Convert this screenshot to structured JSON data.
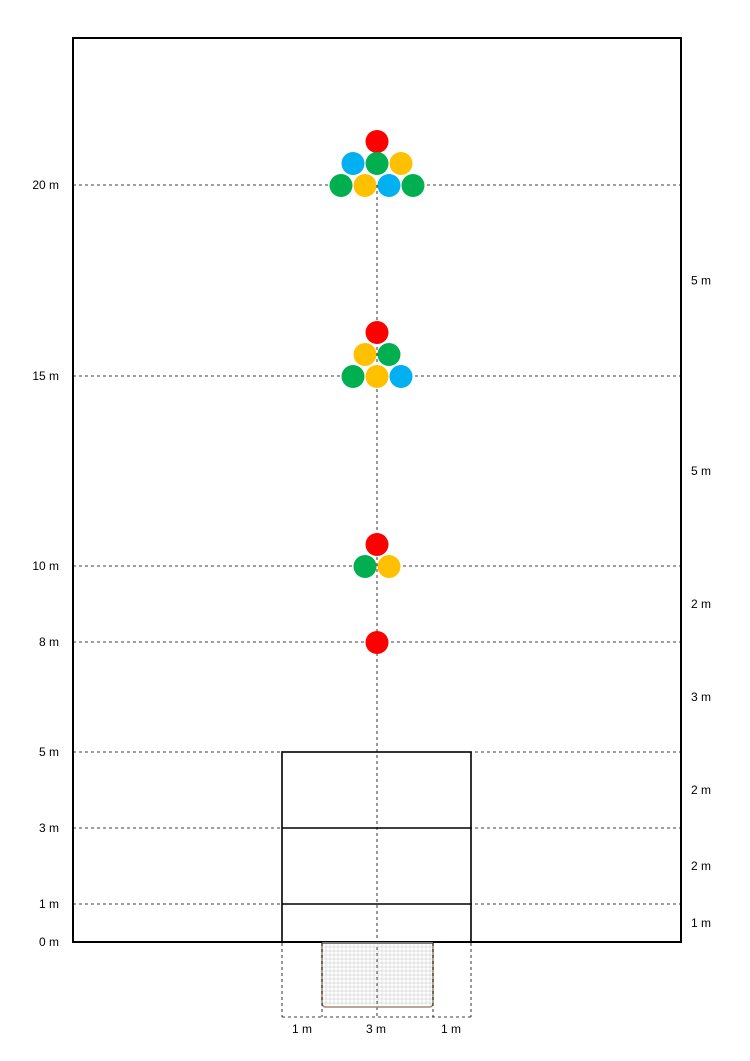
{
  "rows": [
    {
      "label": "20 m",
      "value": 20
    },
    {
      "label": "15 m",
      "value": 15
    },
    {
      "label": "10 m",
      "value": 10
    },
    {
      "label": "8 m",
      "value": 8
    },
    {
      "label": "5 m",
      "value": 5
    },
    {
      "label": "3 m",
      "value": 3
    },
    {
      "label": "1 m",
      "value": 1
    },
    {
      "label": "0 m",
      "value": 0
    }
  ],
  "gaps": [
    {
      "label": "5 m",
      "from": 15,
      "to": 20
    },
    {
      "label": "5 m",
      "from": 10,
      "to": 15
    },
    {
      "label": "2 m",
      "from": 8,
      "to": 10
    },
    {
      "label": "3 m",
      "from": 5,
      "to": 8
    },
    {
      "label": "2 m",
      "from": 3,
      "to": 5
    },
    {
      "label": "2 m",
      "from": 1,
      "to": 3
    },
    {
      "label": "1 m",
      "from": 0,
      "to": 1
    }
  ],
  "goal_widths": [
    {
      "label": "1 m",
      "zone": "left-post"
    },
    {
      "label": "3 m",
      "zone": "goal"
    },
    {
      "label": "1 m",
      "zone": "right-post"
    }
  ],
  "colors": {
    "red": "#ff0000",
    "green": "#00b050",
    "yellow": "#ffc000",
    "blue": "#00b0f0",
    "line": "#000000",
    "net": "#c4c4c4",
    "goal_frame": "#a08c72"
  },
  "ball_groups": [
    {
      "distance_m": 20,
      "balls": [
        {
          "color": "red",
          "row": 2,
          "slot": 0
        },
        {
          "color": "blue",
          "row": 1,
          "slot": -1
        },
        {
          "color": "green",
          "row": 1,
          "slot": 0
        },
        {
          "color": "yellow",
          "row": 1,
          "slot": 1
        },
        {
          "color": "green",
          "row": 0,
          "slot": -1.5
        },
        {
          "color": "yellow",
          "row": 0,
          "slot": -0.5
        },
        {
          "color": "blue",
          "row": 0,
          "slot": 0.5
        },
        {
          "color": "green",
          "row": 0,
          "slot": 1.5
        }
      ]
    },
    {
      "distance_m": 15,
      "balls": [
        {
          "color": "red",
          "row": 2,
          "slot": 0
        },
        {
          "color": "yellow",
          "row": 1,
          "slot": -0.5
        },
        {
          "color": "green",
          "row": 1,
          "slot": 0.5
        },
        {
          "color": "green",
          "row": 0,
          "slot": -1
        },
        {
          "color": "yellow",
          "row": 0,
          "slot": 0
        },
        {
          "color": "blue",
          "row": 0,
          "slot": 1
        }
      ]
    },
    {
      "distance_m": 10,
      "balls": [
        {
          "color": "red",
          "row": 1,
          "slot": 0
        },
        {
          "color": "green",
          "row": 0,
          "slot": -0.5
        },
        {
          "color": "yellow",
          "row": 0,
          "slot": 0.5
        }
      ]
    },
    {
      "distance_m": 8,
      "balls": [
        {
          "color": "red",
          "row": 0,
          "slot": 0
        }
      ]
    }
  ]
}
